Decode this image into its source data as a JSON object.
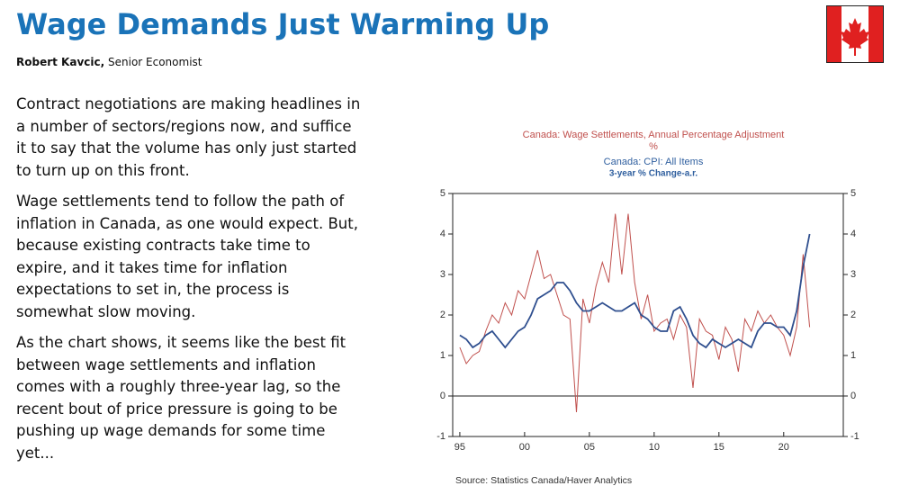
{
  "header": {
    "title": "Wage Demands Just Warming Up",
    "author": "Robert Kavcic,",
    "role": "Senior Economist"
  },
  "paragraphs": [
    "Contract negotiations are making headlines in a number of sectors/regions now, and suffice it to say that the volume has only just started to turn up on this front.",
    "Wage settlements tend to follow the path of inflation in Canada, as one would expect. But, because existing contracts take time to expire, and it takes time for inflation expectations to set in, the process is somewhat slow moving.",
    "As the chart shows, it seems like the best fit between wage settlements and inflation comes with a roughly three-year lag, so the recent bout of price pressure is going to be pushing up wage demands for some time yet..."
  ],
  "chart_data": {
    "type": "line",
    "units": [
      "%",
      "3-year % Change-a.r."
    ],
    "source": "Source:  Statistics Canada/Haver Analytics",
    "x": [
      1995,
      1995.5,
      1996,
      1996.5,
      1997,
      1997.5,
      1998,
      1998.5,
      1999,
      1999.5,
      2000,
      2000.5,
      2001,
      2001.5,
      2002,
      2002.5,
      2003,
      2003.5,
      2004,
      2004.5,
      2005,
      2005.5,
      2006,
      2006.5,
      2007,
      2007.5,
      2008,
      2008.5,
      2009,
      2009.5,
      2010,
      2010.5,
      2011,
      2011.5,
      2012,
      2012.5,
      2013,
      2013.5,
      2014,
      2014.5,
      2015,
      2015.5,
      2016,
      2016.5,
      2017,
      2017.5,
      2018,
      2018.5,
      2019,
      2019.5,
      2020,
      2020.5,
      2021,
      2021.5,
      2022
    ],
    "series": [
      {
        "name": "Canada: Wage Settlements, Annual Percentage Adjustment",
        "color": "#c0504d",
        "values": [
          1.2,
          0.8,
          1.0,
          1.1,
          1.6,
          2.0,
          1.8,
          2.3,
          2.0,
          2.6,
          2.4,
          3.0,
          3.6,
          2.9,
          3.0,
          2.5,
          2.0,
          1.9,
          -0.4,
          2.4,
          1.8,
          2.7,
          3.3,
          2.8,
          4.5,
          3.0,
          4.5,
          2.8,
          1.9,
          2.5,
          1.6,
          1.8,
          1.9,
          1.4,
          2.0,
          1.7,
          0.2,
          1.9,
          1.6,
          1.5,
          0.9,
          1.7,
          1.4,
          0.6,
          1.9,
          1.6,
          2.1,
          1.8,
          2.0,
          1.7,
          1.5,
          1.0,
          1.7,
          3.5,
          1.7
        ]
      },
      {
        "name": "Canada: CPI: All Items",
        "color": "#2f4f8f",
        "axis": "y2",
        "values": [
          1.5,
          1.4,
          1.2,
          1.3,
          1.5,
          1.6,
          1.4,
          1.2,
          1.4,
          1.6,
          1.7,
          2.0,
          2.4,
          2.5,
          2.6,
          2.8,
          2.8,
          2.6,
          2.3,
          2.1,
          2.1,
          2.2,
          2.3,
          2.2,
          2.1,
          2.1,
          2.2,
          2.3,
          2.0,
          1.9,
          1.7,
          1.6,
          1.6,
          2.1,
          2.2,
          1.9,
          1.5,
          1.3,
          1.2,
          1.4,
          1.3,
          1.2,
          1.3,
          1.4,
          1.3,
          1.2,
          1.6,
          1.8,
          1.8,
          1.7,
          1.7,
          1.5,
          2.1,
          3.2,
          4.0
        ]
      }
    ],
    "xlim": [
      1994.45,
      2024.6
    ],
    "xticks": [
      {
        "value": 1995,
        "label": "95"
      },
      {
        "value": 2000,
        "label": "00"
      },
      {
        "value": 2005,
        "label": "05"
      },
      {
        "value": 2010,
        "label": "10"
      },
      {
        "value": 2015,
        "label": "15"
      },
      {
        "value": 2020,
        "label": "20"
      }
    ],
    "ylim": [
      -1,
      5
    ],
    "yticks": [
      -1,
      0,
      1,
      2,
      3,
      4,
      5
    ],
    "y2lim": [
      -1,
      5
    ],
    "y2ticks": [
      -1,
      0,
      1,
      2,
      3,
      4,
      5
    ]
  }
}
